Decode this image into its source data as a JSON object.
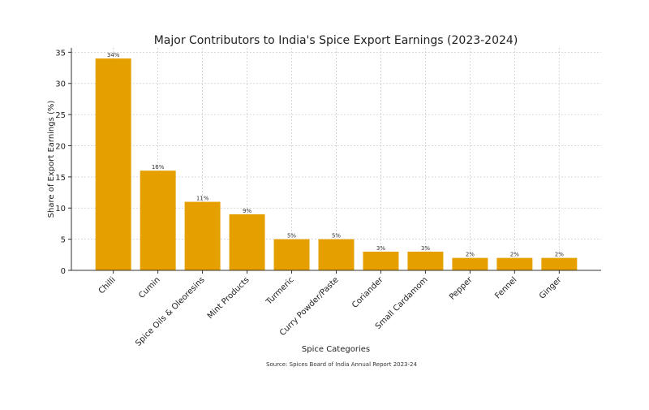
{
  "chart_data": {
    "type": "bar",
    "title": "Major Contributors to India's Spice Export Earnings (2023-2024)",
    "xlabel": "Spice Categories",
    "ylabel": "Share of Export Earnings (%)",
    "categories": [
      "Chilli",
      "Cumin",
      "Spice Oils & Oleoresins",
      "Mint Products",
      "Turmeric",
      "Curry Powder/Paste",
      "Coriander",
      "Small Cardamom",
      "Pepper",
      "Fennel",
      "Ginger"
    ],
    "values": [
      34,
      16,
      11,
      9,
      5,
      5,
      3,
      3,
      2,
      2,
      2
    ],
    "data_labels": [
      "34%",
      "16%",
      "11%",
      "9%",
      "5%",
      "5%",
      "3%",
      "3%",
      "2%",
      "2%",
      "2%"
    ],
    "yticks": [
      0,
      5,
      10,
      15,
      20,
      25,
      30,
      35
    ],
    "ylim": [
      0,
      35.7
    ],
    "grid": true,
    "bar_color": "#E5A000",
    "source_note": "Source: Spices Board of India Annual Report 2023-24"
  }
}
